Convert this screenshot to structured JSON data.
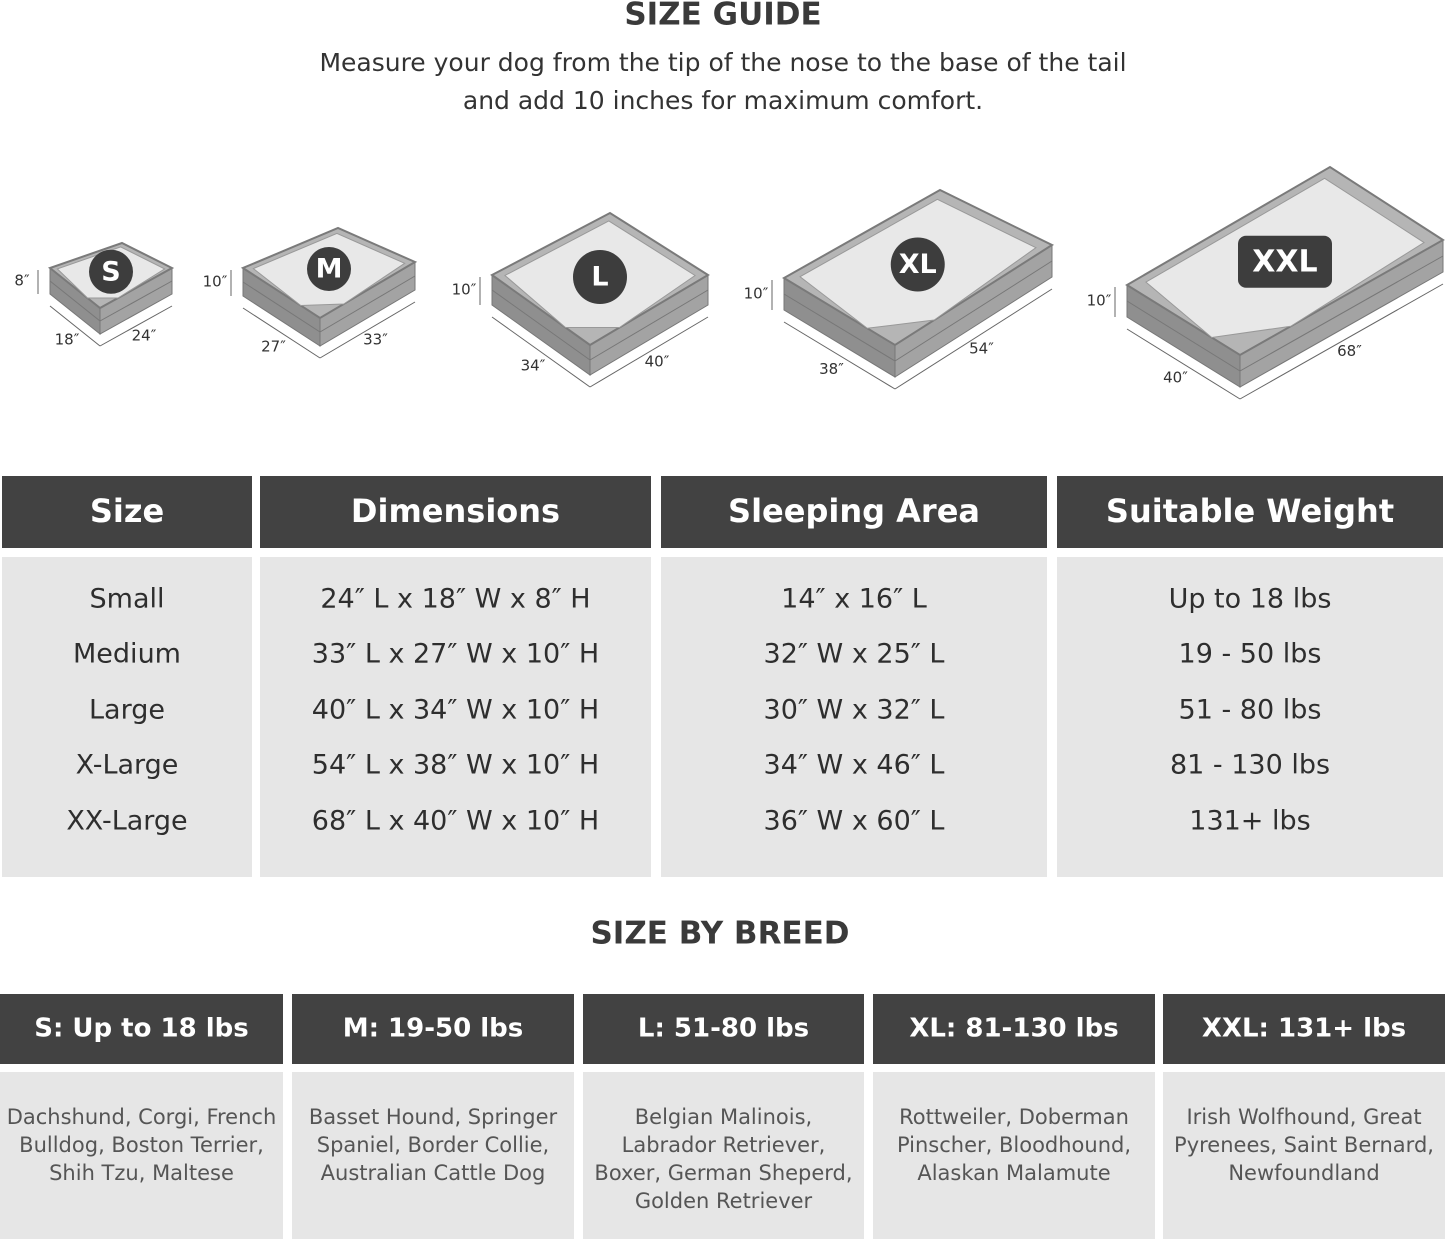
{
  "header": {
    "title": "SIZE GUIDE",
    "subtitle": [
      "Measure your dog from the tip of the nose to the base of the tail",
      "and add 10 inches for maximum comfort."
    ]
  },
  "beds": [
    {
      "label": "S",
      "height": "8″",
      "width": "18″",
      "length": "24″"
    },
    {
      "label": "M",
      "height": "10″",
      "width": "27″",
      "length": "33″"
    },
    {
      "label": "L",
      "height": "10″",
      "width": "34″",
      "length": "40″"
    },
    {
      "label": "XL",
      "height": "10″",
      "width": "38″",
      "length": "54″"
    },
    {
      "label": "XXL",
      "height": "10″",
      "width": "40″",
      "length": "68″"
    }
  ],
  "table": {
    "headers": [
      "Size",
      "Dimensions",
      "Sleeping Area",
      "Suitable Weight"
    ],
    "rows": [
      [
        "Small",
        "24″ L x 18″ W x 8″ H",
        "14″ x 16″ L",
        "Up to 18 lbs"
      ],
      [
        "Medium",
        "33″ L x 27″ W x 10″ H",
        "32″ W x 25″ L",
        "19 - 50 lbs"
      ],
      [
        "Large",
        "40″ L x 34″ W x 10″ H",
        "30″ W x 32″ L",
        "51 - 80 lbs"
      ],
      [
        "X-Large",
        "54″ L x 38″ W x 10″ H",
        "34″ W x 46″ L",
        "81 - 130 lbs"
      ],
      [
        "XX-Large",
        "68″ L x 40″ W x 10″ H",
        "36″ W x 60″ L",
        "131+ lbs"
      ]
    ]
  },
  "breed": {
    "title": "SIZE BY BREED",
    "headers": [
      "S: Up to 18 lbs",
      "M: 19-50 lbs",
      "L: 51-80 lbs",
      "XL: 81-130 lbs",
      "XXL: 131+ lbs"
    ],
    "cells": [
      [
        "Dachshund, Corgi, French",
        "Bulldog, Boston Terrier,",
        "Shih Tzu, Maltese"
      ],
      [
        "Basset Hound, Springer",
        "Spaniel, Border Collie,",
        "Australian Cattle Dog"
      ],
      [
        "Belgian Malinois,",
        "Labrador Retriever,",
        "Boxer, German Sheperd,",
        "Golden Retriever"
      ],
      [
        "Rottweiler, Doberman",
        "Pinscher, Bloodhound,",
        "Alaskan Malamute"
      ],
      [
        "Irish Wolfhound, Great",
        "Pyrenees, Saint Bernard,",
        "Newfoundland"
      ]
    ]
  }
}
